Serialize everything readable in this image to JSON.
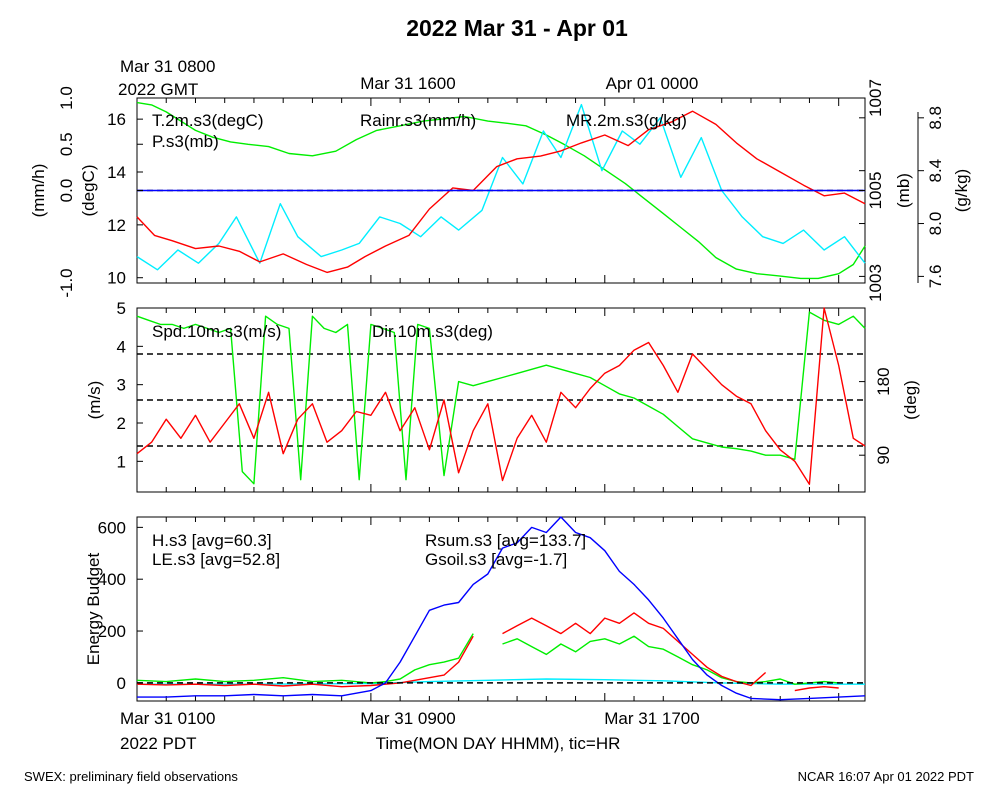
{
  "title": "2022 Mar 31 - Apr 01",
  "top_axis": {
    "start_line1": "Mar 31 0800",
    "start_line2": "2022 GMT",
    "ticks": [
      {
        "hour": 8,
        "label": "Mar 31 1600"
      },
      {
        "hour": 16,
        "label": "Apr 01 0000"
      }
    ]
  },
  "bottom_axis": {
    "start_line1": "Mar 31 0100",
    "start_line2": "2022 PDT",
    "ticks": [
      {
        "hour": 8,
        "label": "Mar 31 0900"
      },
      {
        "hour": 16,
        "label": "Mar 31 1700"
      }
    ],
    "xlabel": "Time(MON DAY HHMM), tic=HR"
  },
  "footer": {
    "left": "SWEX: preliminary field observations",
    "right": "NCAR 16:07 Apr 01 2022 PDT"
  },
  "colors": {
    "red": "#ff0000",
    "green": "#00ee00",
    "blue": "#0000ff",
    "cyan": "#00eeff",
    "black": "#000000"
  },
  "chart_data": [
    {
      "type": "line",
      "xlim": [
        0,
        24.9
      ],
      "axes": [
        {
          "id": "rain",
          "side": "left",
          "label": "(mm/h)",
          "ylim": [
            -1.0,
            1.0
          ],
          "ticks": [
            -1.0,
            0.0,
            0.5,
            1.0
          ],
          "tick_labels": [
            "-1.0",
            "0.0",
            "0.5",
            "1.0"
          ]
        },
        {
          "id": "temp",
          "side": "left",
          "label": "(degC)",
          "ylim": [
            9.8,
            16.8
          ],
          "ticks": [
            10,
            12,
            14,
            16
          ],
          "tick_labels": [
            "10",
            "12",
            "14",
            "16"
          ]
        },
        {
          "id": "pres",
          "side": "right",
          "label": "(mb)",
          "ylim": [
            1003,
            1007
          ],
          "ticks": [
            1003,
            1005,
            1007
          ],
          "tick_labels": [
            "1003",
            "1005",
            "1007"
          ]
        },
        {
          "id": "mr",
          "side": "right",
          "label": "(g/kg)",
          "ylim": [
            7.55,
            8.95
          ],
          "ticks": [
            7.6,
            8.0,
            8.4,
            8.8
          ],
          "tick_labels": [
            "7.6",
            "8.0",
            "8.4",
            "8.8"
          ]
        }
      ],
      "legend": [
        {
          "text": "T.2m.s3(degC)",
          "color": "#ff0000"
        },
        {
          "text": "P.s3(mb)",
          "color": "#00ee00"
        },
        {
          "text": "Rainr.s3(mm/h)",
          "color": "#0000ff"
        },
        {
          "text": "MR.2m.s3(g/kg)",
          "color": "#00eeff"
        }
      ],
      "series": [
        {
          "name": "T.2m.s3(degC)",
          "axis": "temp",
          "color": "#ff0000",
          "x": [
            0,
            0.6,
            1.2,
            2,
            2.8,
            3.5,
            4.2,
            5,
            5.8,
            6.5,
            7.2,
            7.8,
            8.5,
            9.3,
            10,
            10.8,
            11.5,
            12.3,
            13,
            13.8,
            14.5,
            15.2,
            16,
            16.8,
            17.5,
            18.3,
            19,
            19.8,
            20.5,
            21.2,
            22,
            22.8,
            23.5,
            24.2,
            24.9
          ],
          "y": [
            12.3,
            11.6,
            11.4,
            11.1,
            11.2,
            11.0,
            10.6,
            10.9,
            10.5,
            10.2,
            10.4,
            10.8,
            11.2,
            11.6,
            12.6,
            13.4,
            13.3,
            14.2,
            14.5,
            14.6,
            14.8,
            15.1,
            15.4,
            15.0,
            15.6,
            15.9,
            16.3,
            15.8,
            15.1,
            14.5,
            14.0,
            13.5,
            13.1,
            13.2,
            12.8
          ]
        },
        {
          "name": "P.s3(mb)",
          "axis": "pres",
          "color": "#00ee00",
          "x": [
            0,
            0.5,
            1,
            1.5,
            2,
            2.6,
            3.2,
            3.8,
            4.5,
            5.2,
            6,
            6.8,
            7.5,
            8.2,
            9,
            9.8,
            10.5,
            11.2,
            12,
            12.7,
            13.3,
            14,
            14.6,
            15.3,
            16,
            16.7,
            17.3,
            18,
            18.6,
            19.2,
            19.8,
            20.5,
            21.2,
            22,
            22.7,
            23.3,
            24,
            24.5,
            24.9
          ],
          "y": [
            1006.9,
            1006.85,
            1006.7,
            1006.5,
            1006.3,
            1006.15,
            1006.05,
            1006.0,
            1005.95,
            1005.8,
            1005.75,
            1005.85,
            1006.1,
            1006.3,
            1006.4,
            1006.5,
            1006.55,
            1006.6,
            1006.5,
            1006.45,
            1006.4,
            1006.2,
            1006.0,
            1005.75,
            1005.45,
            1005.15,
            1004.85,
            1004.5,
            1004.2,
            1003.9,
            1003.55,
            1003.3,
            1003.2,
            1003.15,
            1003.1,
            1003.1,
            1003.2,
            1003.4,
            1003.8
          ]
        },
        {
          "name": "Rainr.s3(mm/h)",
          "axis": "rain",
          "color": "#0000ff",
          "x": [
            0,
            24.9
          ],
          "y": [
            0.0,
            0.0
          ]
        },
        {
          "name": "MR.2m.s3(g/kg)",
          "axis": "mr",
          "color": "#00eeff",
          "x": [
            0,
            0.7,
            1.4,
            2.1,
            2.8,
            3.4,
            4.2,
            4.9,
            5.5,
            6.3,
            7.0,
            7.6,
            8.3,
            9.0,
            9.7,
            10.4,
            11.0,
            11.8,
            12.5,
            13.2,
            13.9,
            14.5,
            15.2,
            15.9,
            16.6,
            17.2,
            17.9,
            18.6,
            19.3,
            20.0,
            20.7,
            21.4,
            22.1,
            22.8,
            23.5,
            24.2,
            24.9
          ],
          "y": [
            7.75,
            7.65,
            7.8,
            7.7,
            7.85,
            8.05,
            7.7,
            8.15,
            7.9,
            7.75,
            7.8,
            7.85,
            8.05,
            8.0,
            7.9,
            8.05,
            7.95,
            8.1,
            8.5,
            8.3,
            8.7,
            8.5,
            8.9,
            8.4,
            8.7,
            8.6,
            8.8,
            8.35,
            8.65,
            8.25,
            8.05,
            7.9,
            7.85,
            7.95,
            7.8,
            7.9,
            7.7
          ]
        }
      ]
    },
    {
      "type": "line",
      "xlim": [
        0,
        24.9
      ],
      "axes": [
        {
          "id": "spd",
          "side": "left",
          "label": "(m/s)",
          "ylim": [
            0.2,
            5.0
          ],
          "ticks": [
            1,
            2,
            3,
            4,
            5
          ],
          "tick_labels": [
            "1",
            "2",
            "3",
            "4",
            "5"
          ]
        },
        {
          "id": "dir",
          "side": "right",
          "label": "(deg)",
          "ylim": [
            45,
            270
          ],
          "ticks": [
            90,
            180
          ],
          "tick_labels": [
            "90",
            "180"
          ]
        }
      ],
      "dashed_lines_spd": [
        1.4,
        2.6,
        3.8
      ],
      "legend": [
        {
          "text": "Spd.10m.s3(m/s)",
          "color": "#ff0000"
        },
        {
          "text": "Dir.10m.s3(deg)",
          "color": "#00ee00"
        }
      ],
      "series": [
        {
          "name": "Spd.10m.s3(m/s)",
          "axis": "spd",
          "color": "#ff0000",
          "x": [
            0,
            0.5,
            1,
            1.5,
            2,
            2.5,
            3,
            3.5,
            4,
            4.5,
            5,
            5.5,
            6,
            6.5,
            7,
            7.5,
            8,
            8.5,
            9,
            9.5,
            10,
            10.5,
            11,
            11.5,
            12,
            12.5,
            13,
            13.5,
            14,
            14.5,
            15,
            15.5,
            16,
            16.5,
            17,
            17.5,
            18,
            18.5,
            19,
            19.5,
            20,
            20.5,
            21,
            21.5,
            22,
            22.5,
            23,
            23.5,
            24,
            24.5,
            24.9
          ],
          "y": [
            1.2,
            1.5,
            2.1,
            1.6,
            2.2,
            1.5,
            2.0,
            2.5,
            1.6,
            2.8,
            1.2,
            2.1,
            2.5,
            1.5,
            1.8,
            2.3,
            2.2,
            2.8,
            1.8,
            2.4,
            1.3,
            2.6,
            0.7,
            1.8,
            2.5,
            0.5,
            1.6,
            2.2,
            1.5,
            2.8,
            2.4,
            2.9,
            3.3,
            3.5,
            3.9,
            4.1,
            3.5,
            2.8,
            3.8,
            3.4,
            3.0,
            2.7,
            2.5,
            1.8,
            1.3,
            1.0,
            0.4,
            5.0,
            3.5,
            1.6,
            1.4
          ]
        },
        {
          "name": "Dir.10m.s3(deg)",
          "axis": "dir",
          "color": "#00ee00",
          "x": [
            0,
            0.4,
            0.8,
            1.2,
            1.6,
            2.0,
            2.4,
            2.8,
            3.2,
            3.6,
            4.0,
            4.4,
            4.8,
            5.2,
            5.6,
            6.0,
            6.4,
            6.8,
            7.2,
            7.6,
            8.0,
            8.4,
            8.8,
            9.2,
            9.6,
            10.0,
            10.5,
            11.0,
            11.5,
            12.0,
            12.5,
            13.0,
            13.5,
            14.0,
            14.5,
            15.0,
            15.5,
            16.0,
            16.5,
            17.0,
            17.5,
            18.0,
            18.5,
            19.0,
            19.5,
            20.0,
            20.5,
            21.0,
            21.5,
            22.0,
            22.5,
            23.0,
            23.5,
            24.0,
            24.5,
            24.9
          ],
          "y": [
            260,
            255,
            250,
            250,
            245,
            250,
            245,
            240,
            245,
            70,
            55,
            260,
            250,
            245,
            60,
            260,
            245,
            240,
            250,
            60,
            250,
            245,
            240,
            60,
            250,
            245,
            65,
            180,
            175,
            180,
            185,
            190,
            195,
            200,
            195,
            190,
            185,
            175,
            165,
            160,
            150,
            140,
            125,
            110,
            105,
            100,
            98,
            95,
            90,
            90,
            85,
            265,
            255,
            250,
            260,
            245
          ]
        }
      ]
    },
    {
      "type": "line",
      "xlim": [
        0,
        24.9
      ],
      "ylabel": "Energy Budget",
      "ylim": [
        -70,
        640
      ],
      "ticks": [
        0,
        200,
        400,
        600
      ],
      "tick_labels": [
        "0",
        "200",
        "400",
        "600"
      ],
      "legend": [
        {
          "text": "H.s3 [avg=60.3]",
          "color": "#ff0000"
        },
        {
          "text": "LE.s3 [avg=52.8]",
          "color": "#00ee00"
        },
        {
          "text": "Rsum.s3 [avg=133.7]",
          "color": "#0000ff"
        },
        {
          "text": "Gsoil.s3 [avg=-1.7]",
          "color": "#00eeff"
        }
      ],
      "series": [
        {
          "name": "H.s3 [avg=60.3]",
          "color": "#ff0000",
          "x": [
            0,
            1,
            2,
            3,
            4,
            5,
            6,
            7,
            8,
            8.5,
            9,
            9.5,
            10,
            10.5,
            11,
            11.5,
            12,
            12.5,
            13,
            13.5,
            14,
            14.5,
            15,
            15.5,
            16,
            16.5,
            17,
            17.5,
            18,
            18.5,
            19,
            19.5,
            20,
            20.5,
            21,
            21.5,
            22,
            22.5,
            23,
            23.5,
            24
          ],
          "y": [
            -5,
            -8,
            -5,
            -10,
            -5,
            -12,
            -5,
            -15,
            -10,
            -5,
            0,
            10,
            20,
            30,
            80,
            180,
            null,
            190,
            220,
            250,
            220,
            190,
            230,
            190,
            250,
            230,
            270,
            230,
            210,
            160,
            110,
            60,
            25,
            5,
            -10,
            40,
            null,
            -30,
            -20,
            -15,
            -20
          ]
        },
        {
          "name": "LE.s3 [avg=52.8]",
          "color": "#00ee00",
          "x": [
            0,
            1,
            2,
            3,
            4,
            5,
            6,
            7,
            8,
            8.5,
            9,
            9.5,
            10,
            10.5,
            11,
            11.5,
            12,
            12.5,
            13,
            13.5,
            14,
            14.5,
            15,
            15.5,
            16,
            16.5,
            17,
            17.5,
            18,
            18.5,
            19,
            19.5,
            20,
            20.5,
            21,
            21.5,
            22,
            22.5,
            23,
            23.5,
            24
          ],
          "y": [
            10,
            5,
            15,
            5,
            10,
            20,
            5,
            10,
            0,
            5,
            15,
            50,
            70,
            80,
            95,
            190,
            null,
            150,
            170,
            140,
            110,
            150,
            120,
            160,
            170,
            150,
            180,
            140,
            130,
            100,
            70,
            50,
            20,
            5,
            0,
            5,
            15,
            -5,
            0,
            5,
            0
          ]
        },
        {
          "name": "Rsum.s3 [avg=133.7]",
          "color": "#0000ff",
          "x": [
            0,
            1,
            2,
            3,
            4,
            5,
            6,
            7,
            7.5,
            8,
            8.5,
            9,
            9.5,
            10,
            10.5,
            11,
            11.5,
            12,
            12.5,
            13,
            13.5,
            14,
            14.5,
            15,
            15.5,
            16,
            16.5,
            17,
            17.5,
            18,
            18.5,
            19,
            19.5,
            20,
            20.5,
            21,
            22,
            23,
            24,
            24.9
          ],
          "y": [
            -55,
            -55,
            -50,
            -50,
            -45,
            -50,
            -45,
            -50,
            -40,
            -30,
            0,
            80,
            180,
            280,
            300,
            310,
            380,
            420,
            520,
            540,
            600,
            580,
            640,
            580,
            560,
            510,
            430,
            380,
            320,
            250,
            170,
            90,
            30,
            -10,
            -40,
            -60,
            -65,
            -60,
            -55,
            -50
          ]
        },
        {
          "name": "Gsoil.s3 [avg=-1.7]",
          "color": "#00eeff",
          "x": [
            0,
            4,
            8,
            10,
            12,
            14,
            16,
            18,
            20,
            22,
            24.9
          ],
          "y": [
            -5,
            -5,
            -3,
            5,
            10,
            15,
            12,
            8,
            0,
            -5,
            -5
          ]
        }
      ]
    }
  ]
}
